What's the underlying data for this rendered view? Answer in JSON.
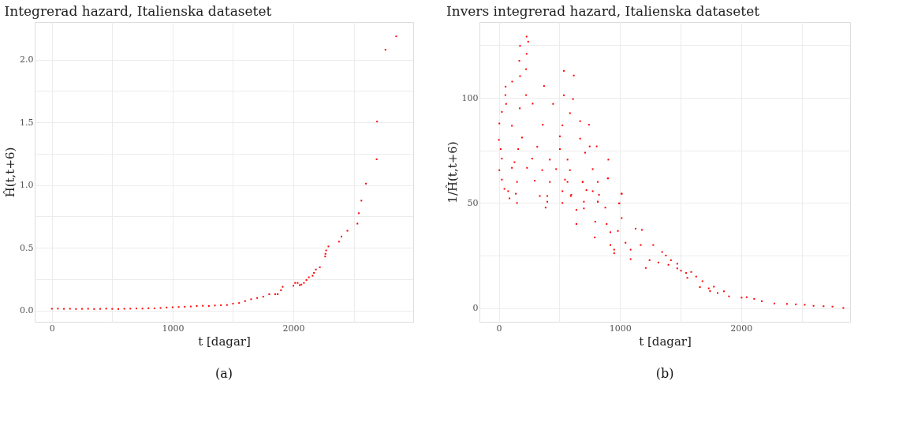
{
  "chart_data": [
    {
      "type": "scatter",
      "title": "Integrerad hazard, Italienska datasetet",
      "xlabel": "t [dagar]",
      "ylabel": "Ĥ(t,t+6)",
      "annotations": [
        "(a)"
      ],
      "marker": "square",
      "grid": true,
      "xlim": [
        -142,
        2992
      ],
      "ylim": [
        -0.09,
        2.3
      ],
      "xticks": [
        0,
        {
          "value": 500,
          "label": null
        },
        1000,
        {
          "value": 1500,
          "label": null
        },
        2000,
        {
          "value": 2500,
          "label": null
        }
      ],
      "yticks": [
        {
          "value": 0,
          "label": "0.0"
        },
        {
          "value": 0.25,
          "label": null
        },
        {
          "value": 0.5,
          "label": "0.5"
        },
        {
          "value": 0.75,
          "label": null
        },
        {
          "value": 1,
          "label": "1.0"
        },
        {
          "value": 1.25,
          "label": null
        },
        {
          "value": 1.5,
          "label": "1.5"
        },
        {
          "value": 1.75,
          "label": null
        },
        {
          "value": 2,
          "label": "2.0"
        }
      ],
      "series": [
        {
          "color": "#ff0000",
          "x": [
            0,
            50,
            100,
            150,
            200,
            250,
            300,
            350,
            400,
            450,
            500,
            550,
            600,
            650,
            700,
            750,
            800,
            850,
            900,
            950,
            1000,
            1050,
            1100,
            1150,
            1200,
            1250,
            1300,
            1350,
            1400,
            1450,
            1500,
            1550,
            1600,
            1650,
            1700,
            1750,
            1800,
            1849,
            1870,
            1897,
            1911,
            2000,
            2014,
            2035,
            2052,
            2066,
            2087,
            2108,
            2128,
            2159,
            2170,
            2186,
            2219,
            2263,
            2265,
            2271,
            2290,
            2377,
            2398,
            2447,
            2530,
            2542,
            2563,
            2600,
            2689,
            2693,
            2762,
            2851
          ],
          "values": [
            0.014,
            0.015,
            0.013,
            0.014,
            0.012,
            0.013,
            0.014,
            0.012,
            0.013,
            0.015,
            0.013,
            0.012,
            0.014,
            0.015,
            0.016,
            0.015,
            0.018,
            0.017,
            0.02,
            0.024,
            0.026,
            0.028,
            0.03,
            0.032,
            0.036,
            0.038,
            0.036,
            0.04,
            0.042,
            0.044,
            0.055,
            0.06,
            0.075,
            0.09,
            0.1,
            0.11,
            0.13,
            0.13,
            0.13,
            0.162,
            0.189,
            0.197,
            0.22,
            0.22,
            0.202,
            0.207,
            0.22,
            0.243,
            0.265,
            0.277,
            0.3,
            0.327,
            0.345,
            0.431,
            0.452,
            0.479,
            0.511,
            0.549,
            0.59,
            0.636,
            0.693,
            0.776,
            0.876,
            1.012,
            1.206,
            1.507,
            2.08,
            2.186
          ]
        }
      ]
    },
    {
      "type": "scatter",
      "title": "Invers integrerad hazard, Italienska datasetet",
      "xlabel": "t [dagar]",
      "ylabel": "1/Ĥ(t,t+6)",
      "annotations": [
        "(b)"
      ],
      "marker": "square",
      "grid": true,
      "xlim": [
        -160,
        2900
      ],
      "ylim": [
        -6.5,
        136
      ],
      "xticks": [
        0,
        {
          "value": 500,
          "label": null
        },
        1000,
        {
          "value": 1500,
          "label": null
        },
        2000,
        {
          "value": 2500,
          "label": null
        }
      ],
      "yticks": [
        0,
        {
          "value": 25,
          "label": null
        },
        50,
        {
          "value": 75,
          "label": null
        },
        100,
        {
          "value": 125,
          "label": null
        }
      ],
      "series": [
        {
          "color": "#ff0000",
          "x": [
            229,
            242,
            175,
            229,
            169,
            225,
            175,
            537,
            619,
            110,
            56,
            373,
            54,
            225,
            537,
            612,
            60,
            279,
            448,
            173,
            25,
            587,
            671,
            744,
            4,
            108,
            363,
            525,
            0,
            192,
            504,
            671,
            808,
            750,
            15,
            160,
            317,
            504,
            25,
            129,
            275,
            421,
            567,
            712,
            904,
            4,
            108,
            233,
            358,
            473,
            587,
            775,
            25,
            150,
            296,
            421,
            567,
            692,
            817,
            900,
            46,
            77,
            140,
            338,
            400,
            525,
            598,
            723,
            827,
            88,
            400,
            150,
            525,
            702,
            817,
            1014,
            386,
            702,
            879,
            994,
            546,
            692,
            900,
            594,
            775,
            1014,
            640,
            817,
            994,
            640,
            796,
            890,
            1014,
            792,
            921,
            983,
            1129,
            1181,
            921,
            952,
            1046,
            1088,
            1171,
            952,
            1088,
            1213,
            1244,
            1275,
            1348,
            1379,
            1317,
            1421,
            1400,
            1473,
            1473,
            1504,
            1546,
            1588,
            1556,
            1629,
            1660,
            1681,
            1733,
            1775,
            1744,
            1806,
            1858,
            1900,
            2004,
            2046,
            2108,
            2171,
            2275,
            2379,
            2452,
            2525,
            2598,
            2681,
            2754,
            2844
          ],
          "values": [
            129.1,
            126.7,
            124.7,
            120.9,
            117.6,
            113.6,
            110.3,
            112.8,
            110.6,
            107.7,
            105.3,
            105.6,
            101.3,
            101.3,
            101.2,
            99.4,
            97.1,
            97.2,
            97.1,
            95,
            93.3,
            92.7,
            88.9,
            87.2,
            87.8,
            86.7,
            87.2,
            86.9,
            80,
            81.1,
            81.7,
            80.6,
            76.9,
            76.9,
            75.6,
            75.6,
            76.7,
            75.6,
            71.1,
            69.4,
            71.1,
            70.6,
            70.6,
            73.9,
            70.6,
            65.6,
            66.7,
            66.7,
            65.6,
            66.1,
            65.6,
            66.1,
            61.1,
            60,
            60.6,
            60,
            60,
            60,
            60,
            61.7,
            56.7,
            55.6,
            54.4,
            53.3,
            53.3,
            55.6,
            53.9,
            56.1,
            53.9,
            52.2,
            50.6,
            50,
            50,
            50.6,
            50.6,
            54.4,
            47.8,
            47.4,
            47.8,
            49.8,
            61.1,
            60,
            61.7,
            53.3,
            55.6,
            54.4,
            46.7,
            50.6,
            49.8,
            40,
            41.1,
            40,
            42.8,
            33.6,
            36.1,
            36.7,
            37.8,
            37.2,
            30,
            27.8,
            31.1,
            27.8,
            30,
            26.1,
            23.3,
            19.1,
            22.8,
            30,
            26.7,
            25,
            21.7,
            22.8,
            20.6,
            21.1,
            18.9,
            17.8,
            16.7,
            17.2,
            14.4,
            15,
            10,
            12.8,
            9.4,
            10.2,
            8.1,
            7.2,
            8,
            5.6,
            5,
            5.2,
            4.4,
            3.3,
            2.2,
            2,
            1.8,
            1.6,
            1.1,
            0.9,
            0.7,
            0.1
          ]
        }
      ]
    }
  ]
}
